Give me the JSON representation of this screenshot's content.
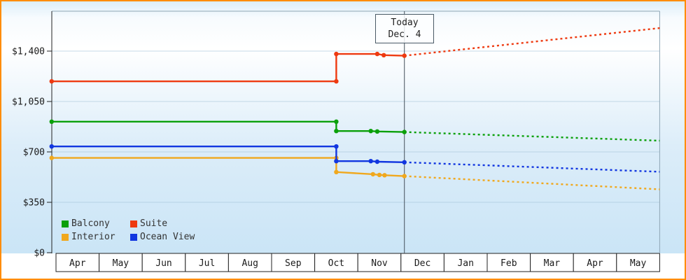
{
  "chart_data": {
    "type": "line",
    "x_axis": {
      "labels": [
        "Apr",
        "May",
        "Jun",
        "Jul",
        "Aug",
        "Sep",
        "Oct",
        "Nov",
        "Dec",
        "Jan",
        "Feb",
        "Mar",
        "Apr",
        "May"
      ]
    },
    "y_axis": {
      "range": [
        0,
        1680
      ],
      "ticks": [
        {
          "label": "$1,400",
          "value": 1400
        },
        {
          "label": "$1,050",
          "value": 1050
        },
        {
          "label": "$700",
          "value": 700
        },
        {
          "label": "$350",
          "value": 350
        },
        {
          "label": "$0",
          "value": 0
        }
      ]
    },
    "today": {
      "line1": "Today",
      "line2": "Dec. 4",
      "month_index": 8.08
    },
    "series": [
      {
        "name": "Balcony",
        "color": "#0aa00a",
        "observed": [
          [
            -0.1,
            910
          ],
          [
            6.5,
            910
          ],
          [
            6.5,
            845
          ],
          [
            7.3,
            845
          ],
          [
            7.45,
            842
          ],
          [
            8.08,
            838
          ]
        ],
        "forecast": [
          [
            8.08,
            838
          ],
          [
            14,
            778
          ]
        ]
      },
      {
        "name": "Suite",
        "color": "#ee3a10",
        "observed": [
          [
            -0.1,
            1190
          ],
          [
            6.5,
            1190
          ],
          [
            6.5,
            1380
          ],
          [
            7.45,
            1380
          ],
          [
            7.6,
            1372
          ],
          [
            8.08,
            1368
          ]
        ],
        "forecast": [
          [
            8.08,
            1368
          ],
          [
            14,
            1560
          ]
        ]
      },
      {
        "name": "Interior",
        "color": "#f0a81e",
        "observed": [
          [
            -0.1,
            658
          ],
          [
            6.5,
            658
          ],
          [
            6.5,
            560
          ],
          [
            7.35,
            545
          ],
          [
            7.5,
            540
          ],
          [
            7.62,
            538
          ],
          [
            8.08,
            532
          ]
        ],
        "forecast": [
          [
            8.08,
            532
          ],
          [
            14,
            440
          ]
        ]
      },
      {
        "name": "Ocean View",
        "color": "#1136e0",
        "observed": [
          [
            -0.1,
            738
          ],
          [
            6.5,
            738
          ],
          [
            6.5,
            636
          ],
          [
            7.3,
            636
          ],
          [
            7.45,
            632
          ],
          [
            8.08,
            628
          ]
        ],
        "forecast": [
          [
            8.08,
            628
          ],
          [
            14,
            562
          ]
        ]
      }
    ]
  },
  "legend": {
    "items": [
      {
        "label": "Balcony",
        "color": "#0aa00a"
      },
      {
        "label": "Suite",
        "color": "#ee3a10"
      },
      {
        "label": "Interior",
        "color": "#f0a81e"
      },
      {
        "label": "Ocean View",
        "color": "#1136e0"
      }
    ]
  }
}
